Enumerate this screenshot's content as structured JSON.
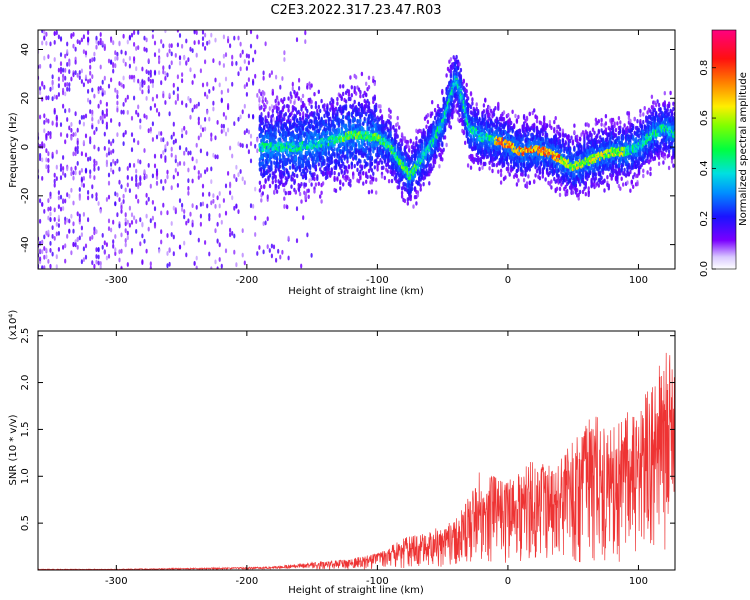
{
  "title": "C2E3.2022.317.23.47.R03",
  "chart_data": [
    {
      "type": "heatmap",
      "xlabel": "Height of straight line (km)",
      "ylabel": "Frequency (Hz)",
      "xlim": [
        -360,
        128
      ],
      "ylim": [
        -50,
        48
      ],
      "x_ticks": [
        -300,
        -200,
        -100,
        0,
        100
      ],
      "y_ticks": [
        -40,
        -20,
        0,
        20,
        40
      ],
      "colorbar": {
        "label": "Normalized spectral amplitude",
        "range": [
          0.0,
          0.95
        ],
        "ticks": [
          0.0,
          0.2,
          0.4,
          0.6,
          0.8
        ]
      },
      "ridge_trace": {
        "x": [
          -180,
          -160,
          -140,
          -120,
          -100,
          -90,
          -80,
          -75,
          -70,
          -60,
          -50,
          -40,
          -35,
          -30,
          -20,
          -10,
          0,
          10,
          20,
          30,
          40,
          50,
          60,
          70,
          80,
          90,
          100,
          110,
          120,
          128
        ],
        "y": [
          0,
          0,
          2,
          5,
          4,
          0,
          -8,
          -12,
          -8,
          0,
          10,
          28,
          20,
          8,
          4,
          3,
          1,
          -2,
          -1,
          -2,
          -5,
          -8,
          -6,
          -4,
          -2,
          -2,
          0,
          5,
          8,
          5
        ]
      },
      "grid": false
    },
    {
      "type": "line",
      "xlabel": "Height of straight line (km)",
      "ylabel": "SNR (10 * v/v)",
      "y_scale_label": "(x10⁴)",
      "xlim": [
        -360,
        128
      ],
      "ylim": [
        0,
        2.55
      ],
      "x_ticks": [
        -300,
        -200,
        -100,
        0,
        100
      ],
      "y_ticks": [
        0.5,
        1.0,
        1.5,
        2.0,
        2.5
      ],
      "series": [
        {
          "color": "#ee3333",
          "envelope_x": [
            -360,
            -300,
            -250,
            -200,
            -180,
            -150,
            -120,
            -100,
            -90,
            -80,
            -60,
            -50,
            -40,
            -30,
            -20,
            -10,
            0,
            10,
            20,
            30,
            40,
            50,
            60,
            70,
            80,
            90,
            100,
            110,
            120,
            128
          ],
          "envelope_y": [
            0.01,
            0.01,
            0.02,
            0.03,
            0.04,
            0.08,
            0.12,
            0.18,
            0.25,
            0.35,
            0.4,
            0.5,
            0.55,
            0.8,
            1.1,
            1.0,
            0.95,
            1.05,
            1.2,
            1.1,
            1.2,
            1.4,
            1.6,
            1.65,
            1.5,
            1.7,
            1.8,
            2.0,
            2.3,
            2.45
          ]
        }
      ],
      "grid": false
    }
  ]
}
